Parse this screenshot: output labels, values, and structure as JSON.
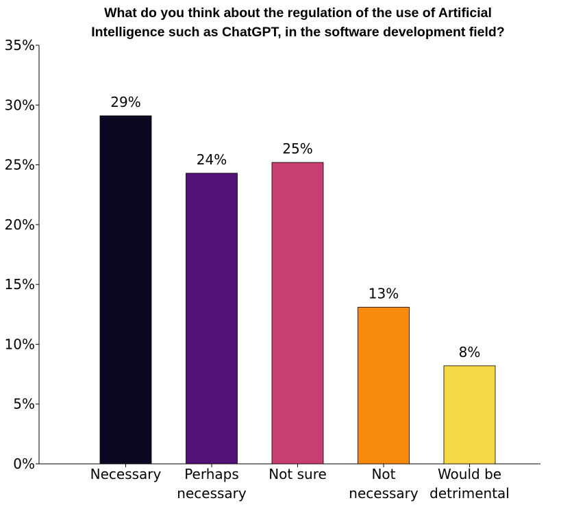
{
  "chart_data": {
    "type": "bar",
    "title_lines": [
      "What do you think about the regulation of the use of Artificial",
      "Intelligence such as ChatGPT, in the software development field?"
    ],
    "categories": [
      [
        "Necessary"
      ],
      [
        "Perhaps",
        "necessary"
      ],
      [
        "Not sure"
      ],
      [
        "Not",
        "necessary"
      ],
      [
        "Would be",
        "detrimental"
      ]
    ],
    "values": [
      29.1,
      24.3,
      25.2,
      13.1,
      8.2
    ],
    "data_labels": [
      "29%",
      "24%",
      "25%",
      "13%",
      "8%"
    ],
    "colors": [
      "#0c0823",
      "#531278",
      "#c73e73",
      "#f88a0e",
      "#f6d746"
    ],
    "ylim": [
      0,
      35
    ],
    "yticks": [
      0,
      5,
      10,
      15,
      20,
      25,
      30,
      35
    ],
    "ytick_labels": [
      "0%",
      "5%",
      "10%",
      "15%",
      "20%",
      "25%",
      "30%",
      "35%"
    ],
    "xlabel": "",
    "ylabel": "",
    "grid": false,
    "legend": "none"
  }
}
